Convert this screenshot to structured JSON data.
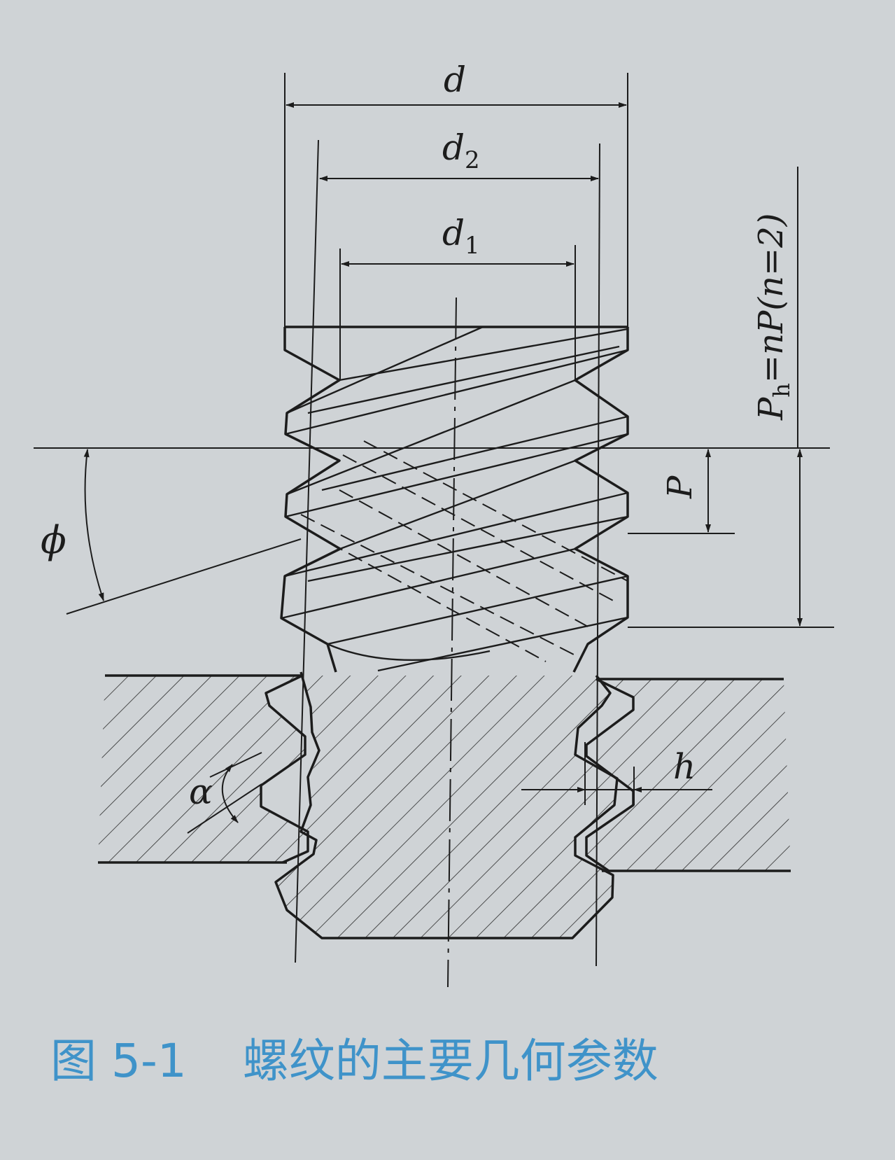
{
  "labels": {
    "d": "d",
    "d2_main": "d",
    "d2_sub": "2",
    "d1_main": "d",
    "d1_sub": "1",
    "p": "P",
    "ph_main": "P",
    "ph_sub": "h",
    "ph_rest": "=nP(n=2)",
    "phi": "ϕ",
    "alpha": "α",
    "h": "h"
  },
  "caption": {
    "number": "图 5-1",
    "title": "螺纹的主要几何参数"
  },
  "colors": {
    "background": "#cfd3d6",
    "ink": "#1c1c1c",
    "caption": "#3f93c9"
  }
}
